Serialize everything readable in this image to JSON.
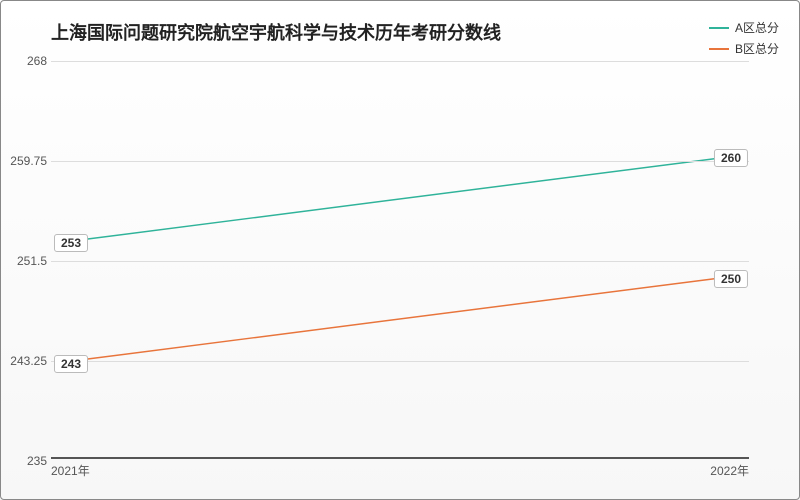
{
  "chart": {
    "type": "line",
    "title": "上海国际问题研究院航空宇航科学与技术历年考研分数线",
    "title_fontsize": 18,
    "background_gradient": [
      "#ffffff",
      "#f7f7f7"
    ],
    "border_color": "#888888",
    "grid_color": "#dddddd",
    "axis_color": "#555555",
    "label_fontsize": 12,
    "ylim": [
      235,
      268
    ],
    "yticks": [
      235,
      243.25,
      251.5,
      259.75,
      268
    ],
    "ytick_labels": [
      "235",
      "243.25",
      "251.5",
      "259.75",
      "268"
    ],
    "x_categories": [
      "2021年",
      "2022年"
    ],
    "legend": {
      "position": "top-right"
    },
    "series": [
      {
        "name": "A区总分",
        "color": "#2fb39a",
        "line_width": 1.5,
        "marker": "circle",
        "marker_size": 4,
        "values": [
          253,
          260
        ]
      },
      {
        "name": "B区总分",
        "color": "#e8743b",
        "line_width": 1.5,
        "marker": "circle",
        "marker_size": 4,
        "values": [
          243,
          250
        ]
      }
    ]
  }
}
